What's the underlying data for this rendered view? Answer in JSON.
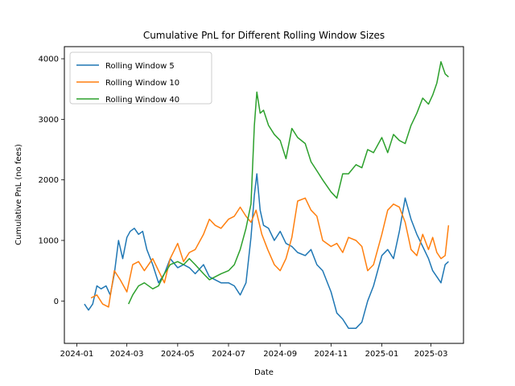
{
  "chart_data": {
    "type": "line",
    "title": "Cumulative PnL for Different Rolling Window Sizes",
    "xlabel": "Date",
    "ylabel": "Cumulative PnL (no fees)",
    "xlim": [
      "2023-12-17",
      "2025-04-09"
    ],
    "ylim": [
      -700,
      4200
    ],
    "x_ticks": [
      "2024-01",
      "2024-03",
      "2024-05",
      "2024-07",
      "2024-09",
      "2024-11",
      "2025-01",
      "2025-03"
    ],
    "x_tick_dates": [
      "2024-01-01",
      "2024-03-01",
      "2024-05-01",
      "2024-07-01",
      "2024-09-01",
      "2024-11-01",
      "2025-01-01",
      "2025-03-01"
    ],
    "y_ticks": [
      0,
      1000,
      2000,
      3000,
      4000
    ],
    "grid": false,
    "legend_position": "top-left",
    "series": [
      {
        "name": "Rolling Window 5",
        "color": "#1f77b4",
        "x": [
          "2024-01-10",
          "2024-01-15",
          "2024-01-20",
          "2024-01-25",
          "2024-01-30",
          "2024-02-05",
          "2024-02-10",
          "2024-02-15",
          "2024-02-20",
          "2024-02-25",
          "2024-03-01",
          "2024-03-05",
          "2024-03-10",
          "2024-03-15",
          "2024-03-20",
          "2024-03-25",
          "2024-04-01",
          "2024-04-08",
          "2024-04-15",
          "2024-04-22",
          "2024-05-01",
          "2024-05-08",
          "2024-05-15",
          "2024-05-22",
          "2024-06-01",
          "2024-06-08",
          "2024-06-15",
          "2024-06-22",
          "2024-07-01",
          "2024-07-08",
          "2024-07-15",
          "2024-07-22",
          "2024-07-28",
          "2024-08-01",
          "2024-08-04",
          "2024-08-08",
          "2024-08-12",
          "2024-08-18",
          "2024-08-25",
          "2024-09-01",
          "2024-09-08",
          "2024-09-15",
          "2024-09-22",
          "2024-10-01",
          "2024-10-08",
          "2024-10-15",
          "2024-10-22",
          "2024-11-01",
          "2024-11-08",
          "2024-11-15",
          "2024-11-22",
          "2024-12-01",
          "2024-12-08",
          "2024-12-15",
          "2024-12-22",
          "2025-01-01",
          "2025-01-08",
          "2025-01-15",
          "2025-01-22",
          "2025-01-29",
          "2025-02-05",
          "2025-02-12",
          "2025-02-19",
          "2025-02-26",
          "2025-03-03",
          "2025-03-08",
          "2025-03-13",
          "2025-03-18",
          "2025-03-22"
        ],
        "values": [
          -50,
          -150,
          -50,
          250,
          200,
          250,
          100,
          450,
          1000,
          700,
          1050,
          1150,
          1200,
          1100,
          1150,
          850,
          600,
          300,
          450,
          700,
          550,
          600,
          550,
          450,
          600,
          400,
          350,
          300,
          300,
          250,
          100,
          300,
          1050,
          1750,
          2100,
          1500,
          1250,
          1200,
          1000,
          1150,
          950,
          900,
          800,
          750,
          850,
          600,
          500,
          150,
          -200,
          -300,
          -450,
          -450,
          -350,
          0,
          250,
          750,
          850,
          700,
          1150,
          1700,
          1350,
          1100,
          900,
          700,
          500,
          400,
          300,
          600,
          650
        ]
      },
      {
        "name": "Rolling Window 10",
        "color": "#ff7f0e",
        "x": [
          "2024-01-18",
          "2024-01-25",
          "2024-02-01",
          "2024-02-08",
          "2024-02-15",
          "2024-02-22",
          "2024-03-01",
          "2024-03-08",
          "2024-03-15",
          "2024-03-22",
          "2024-04-01",
          "2024-04-08",
          "2024-04-15",
          "2024-04-22",
          "2024-05-01",
          "2024-05-08",
          "2024-05-15",
          "2024-05-22",
          "2024-06-01",
          "2024-06-08",
          "2024-06-15",
          "2024-06-22",
          "2024-07-01",
          "2024-07-08",
          "2024-07-15",
          "2024-07-22",
          "2024-07-28",
          "2024-08-03",
          "2024-08-10",
          "2024-08-17",
          "2024-08-25",
          "2024-09-01",
          "2024-09-08",
          "2024-09-15",
          "2024-09-22",
          "2024-10-01",
          "2024-10-08",
          "2024-10-15",
          "2024-10-22",
          "2024-11-01",
          "2024-11-08",
          "2024-11-15",
          "2024-11-22",
          "2024-12-01",
          "2024-12-08",
          "2024-12-15",
          "2024-12-22",
          "2025-01-01",
          "2025-01-08",
          "2025-01-15",
          "2025-01-22",
          "2025-01-29",
          "2025-02-05",
          "2025-02-12",
          "2025-02-19",
          "2025-02-26",
          "2025-03-03",
          "2025-03-08",
          "2025-03-13",
          "2025-03-18",
          "2025-03-22"
        ],
        "values": [
          50,
          100,
          -50,
          -100,
          500,
          350,
          150,
          600,
          650,
          500,
          700,
          500,
          300,
          700,
          950,
          650,
          800,
          850,
          1100,
          1350,
          1250,
          1200,
          1350,
          1400,
          1550,
          1400,
          1300,
          1500,
          1100,
          850,
          600,
          500,
          700,
          1050,
          1650,
          1700,
          1500,
          1400,
          1000,
          900,
          950,
          800,
          1050,
          1000,
          900,
          500,
          600,
          1100,
          1500,
          1600,
          1550,
          1300,
          850,
          750,
          1100,
          850,
          1050,
          800,
          700,
          750,
          1250
        ]
      },
      {
        "name": "Rolling Window 40",
        "color": "#2ca02c",
        "x": [
          "2024-03-03",
          "2024-03-08",
          "2024-03-15",
          "2024-03-22",
          "2024-04-01",
          "2024-04-08",
          "2024-04-15",
          "2024-04-22",
          "2024-05-01",
          "2024-05-08",
          "2024-05-15",
          "2024-05-22",
          "2024-06-01",
          "2024-06-08",
          "2024-06-15",
          "2024-06-22",
          "2024-07-01",
          "2024-07-08",
          "2024-07-15",
          "2024-07-22",
          "2024-07-28",
          "2024-08-01",
          "2024-08-04",
          "2024-08-08",
          "2024-08-12",
          "2024-08-18",
          "2024-08-25",
          "2024-09-01",
          "2024-09-08",
          "2024-09-15",
          "2024-09-22",
          "2024-10-01",
          "2024-10-08",
          "2024-10-15",
          "2024-10-22",
          "2024-11-01",
          "2024-11-08",
          "2024-11-15",
          "2024-11-22",
          "2024-12-01",
          "2024-12-08",
          "2024-12-15",
          "2024-12-22",
          "2025-01-01",
          "2025-01-08",
          "2025-01-15",
          "2025-01-22",
          "2025-01-29",
          "2025-02-05",
          "2025-02-12",
          "2025-02-19",
          "2025-02-26",
          "2025-03-03",
          "2025-03-08",
          "2025-03-13",
          "2025-03-18",
          "2025-03-22"
        ],
        "values": [
          -50,
          100,
          250,
          300,
          200,
          250,
          450,
          600,
          650,
          600,
          700,
          600,
          450,
          350,
          400,
          450,
          500,
          600,
          850,
          1200,
          1600,
          2900,
          3450,
          3100,
          3150,
          2900,
          2750,
          2650,
          2350,
          2850,
          2700,
          2600,
          2300,
          2150,
          2000,
          1800,
          1700,
          2100,
          2100,
          2250,
          2200,
          2500,
          2450,
          2700,
          2450,
          2750,
          2650,
          2600,
          2900,
          3100,
          3350,
          3250,
          3400,
          3600,
          3950,
          3750,
          3700
        ]
      }
    ]
  }
}
